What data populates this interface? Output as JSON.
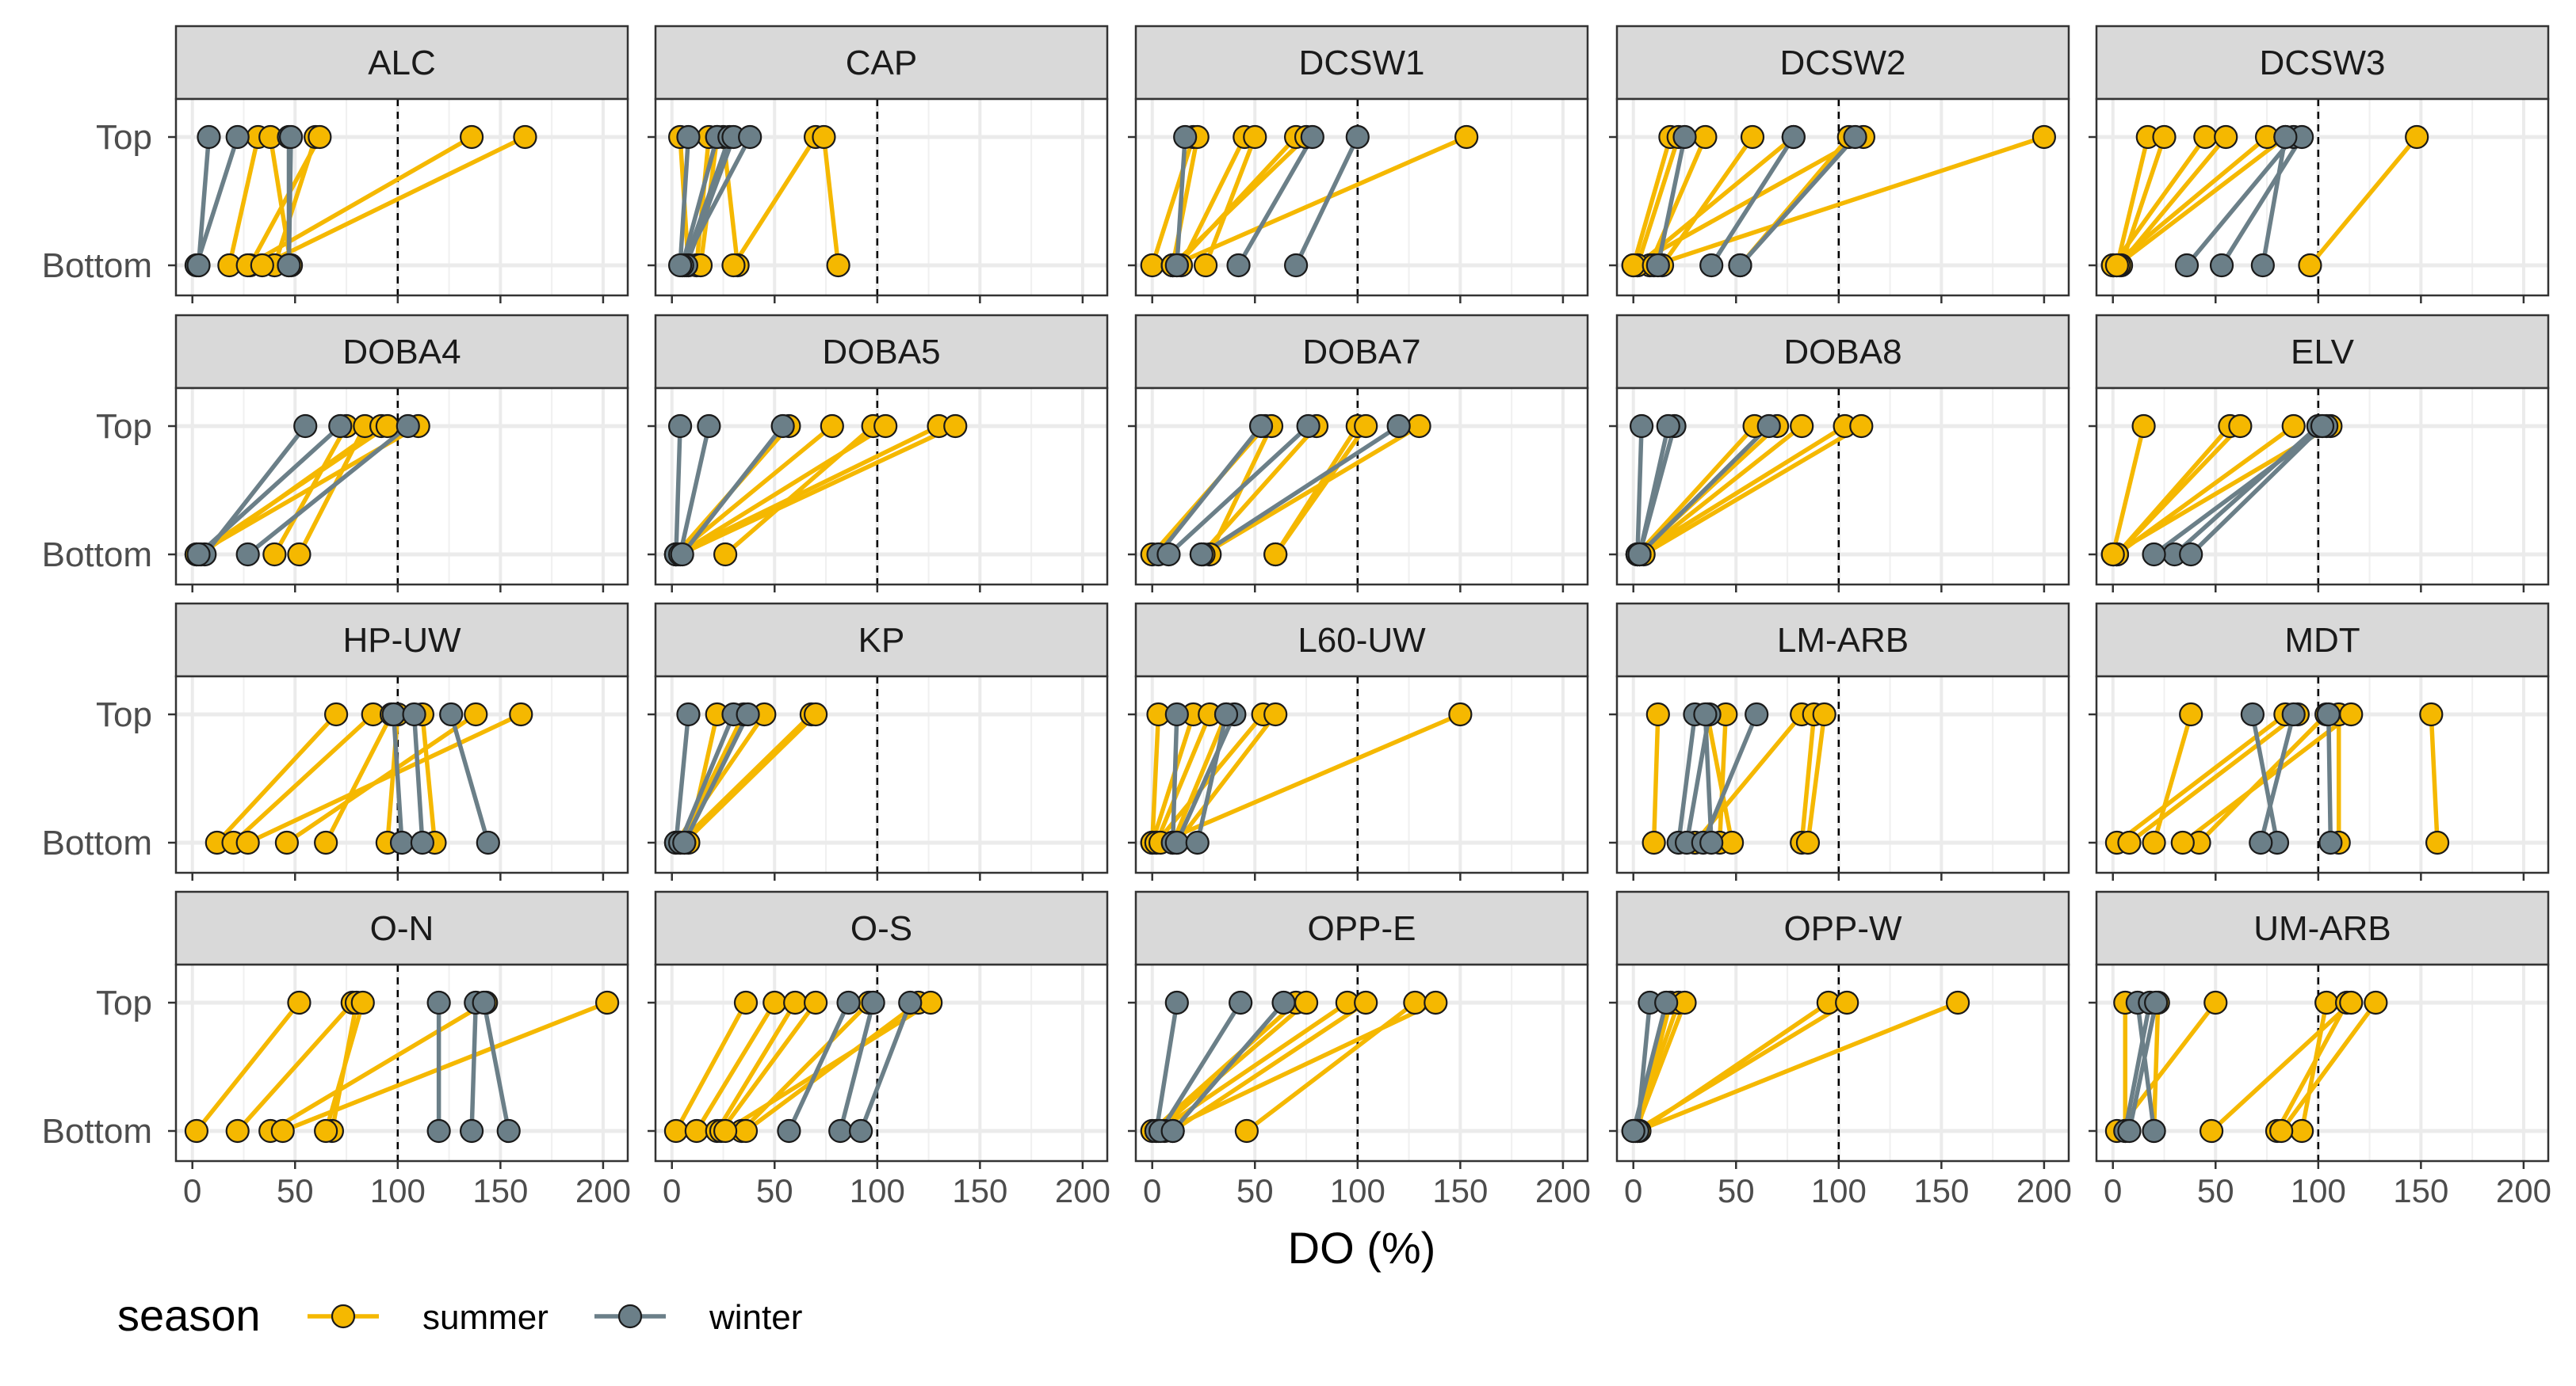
{
  "chart_data": {
    "type": "line",
    "xlabel": "DO (%)",
    "ylabel": "",
    "xlim": [
      -8,
      212
    ],
    "x_ticks": [
      0,
      50,
      100,
      150,
      200
    ],
    "y_categories": [
      "Bottom",
      "Top"
    ],
    "reference_line_x": 100,
    "grid": true,
    "legend": {
      "title": "season",
      "position": "bottom-left",
      "entries": [
        {
          "name": "summer",
          "color": "#F5B800"
        },
        {
          "name": "winter",
          "color": "#6B7F88"
        }
      ]
    },
    "colors": {
      "summer": "#F5B800",
      "winter": "#6B7F88",
      "strip_fill": "#D9D9D9"
    },
    "panels": [
      {
        "site": "ALC",
        "summer": [
          [
            60,
            40
          ],
          [
            62,
            28
          ],
          [
            32,
            18
          ],
          [
            38,
            48
          ],
          [
            136,
            27
          ],
          [
            162,
            34
          ]
        ],
        "winter": [
          [
            47,
            47
          ],
          [
            48,
            47
          ],
          [
            22,
            2
          ],
          [
            8,
            3
          ]
        ]
      },
      {
        "site": "CAP",
        "summer": [
          [
            4,
            8
          ],
          [
            18,
            12
          ],
          [
            22,
            14
          ],
          [
            25,
            32
          ],
          [
            70,
            30
          ],
          [
            74,
            81
          ]
        ],
        "winter": [
          [
            22,
            5
          ],
          [
            28,
            6
          ],
          [
            30,
            7
          ],
          [
            38,
            5
          ],
          [
            8,
            4
          ]
        ]
      },
      {
        "site": "DCSW1",
        "summer": [
          [
            20,
            0
          ],
          [
            22,
            10
          ],
          [
            45,
            14
          ],
          [
            50,
            26
          ],
          [
            70,
            12
          ],
          [
            75,
            10
          ],
          [
            153,
            10
          ]
        ],
        "winter": [
          [
            16,
            12
          ],
          [
            78,
            42
          ],
          [
            100,
            70
          ]
        ]
      },
      {
        "site": "DCSW2",
        "summer": [
          [
            18,
            0
          ],
          [
            22,
            2
          ],
          [
            35,
            8
          ],
          [
            58,
            14
          ],
          [
            78,
            2
          ],
          [
            105,
            52
          ],
          [
            112,
            0
          ],
          [
            200,
            10
          ]
        ],
        "winter": [
          [
            25,
            12
          ],
          [
            78,
            38
          ],
          [
            108,
            52
          ]
        ]
      },
      {
        "site": "DCSW3",
        "summer": [
          [
            17,
            2
          ],
          [
            25,
            4
          ],
          [
            45,
            0
          ],
          [
            55,
            3
          ],
          [
            75,
            0
          ],
          [
            84,
            2
          ],
          [
            148,
            96
          ]
        ],
        "winter": [
          [
            88,
            36
          ],
          [
            92,
            53
          ],
          [
            84,
            73
          ]
        ]
      },
      {
        "site": "DOBA4",
        "summer": [
          [
            75,
            40
          ],
          [
            84,
            52
          ],
          [
            92,
            4
          ],
          [
            95,
            2
          ],
          [
            110,
            2
          ]
        ],
        "winter": [
          [
            55,
            6
          ],
          [
            72,
            3
          ],
          [
            105,
            27
          ]
        ]
      },
      {
        "site": "DOBA5",
        "summer": [
          [
            57,
            2
          ],
          [
            78,
            2
          ],
          [
            98,
            26
          ],
          [
            104,
            3
          ],
          [
            130,
            2
          ],
          [
            138,
            4
          ]
        ],
        "winter": [
          [
            4,
            2
          ],
          [
            18,
            4
          ],
          [
            54,
            5
          ]
        ]
      },
      {
        "site": "DOBA7",
        "summer": [
          [
            55,
            0
          ],
          [
            58,
            28
          ],
          [
            80,
            24
          ],
          [
            100,
            60
          ],
          [
            104,
            60
          ],
          [
            130,
            25
          ]
        ],
        "winter": [
          [
            53,
            3
          ],
          [
            76,
            8
          ],
          [
            120,
            24
          ]
        ]
      },
      {
        "site": "DOBA8",
        "summer": [
          [
            59,
            2
          ],
          [
            70,
            2
          ],
          [
            82,
            3
          ],
          [
            103,
            2
          ],
          [
            111,
            5
          ]
        ],
        "winter": [
          [
            4,
            2
          ],
          [
            20,
            3
          ],
          [
            66,
            3
          ],
          [
            17,
            3
          ]
        ]
      },
      {
        "site": "ELV",
        "summer": [
          [
            15,
            0
          ],
          [
            57,
            2
          ],
          [
            62,
            2
          ],
          [
            88,
            2
          ],
          [
            106,
            0
          ]
        ],
        "winter": [
          [
            100,
            30
          ],
          [
            104,
            20
          ],
          [
            102,
            38
          ]
        ]
      },
      {
        "site": "HP-UW",
        "summer": [
          [
            70,
            12
          ],
          [
            88,
            20
          ],
          [
            97,
            65
          ],
          [
            112,
            118
          ],
          [
            138,
            46
          ],
          [
            160,
            27
          ],
          [
            100,
            95
          ]
        ],
        "winter": [
          [
            98,
            102
          ],
          [
            108,
            112
          ],
          [
            126,
            144
          ]
        ]
      },
      {
        "site": "KP",
        "summer": [
          [
            22,
            8
          ],
          [
            35,
            4
          ],
          [
            45,
            2
          ],
          [
            68,
            4
          ],
          [
            70,
            6
          ]
        ],
        "winter": [
          [
            8,
            2
          ],
          [
            30,
            4
          ],
          [
            37,
            6
          ]
        ]
      },
      {
        "site": "L60-UW",
        "summer": [
          [
            3,
            0
          ],
          [
            20,
            0
          ],
          [
            28,
            2
          ],
          [
            36,
            10
          ],
          [
            54,
            2
          ],
          [
            60,
            12
          ],
          [
            150,
            4
          ]
        ],
        "winter": [
          [
            12,
            10
          ],
          [
            40,
            12
          ],
          [
            36,
            22
          ]
        ]
      },
      {
        "site": "LM-ARB",
        "summer": [
          [
            12,
            10
          ],
          [
            45,
            42
          ],
          [
            82,
            30
          ],
          [
            88,
            82
          ],
          [
            93,
            85
          ],
          [
            36,
            48
          ]
        ],
        "winter": [
          [
            30,
            22
          ],
          [
            37,
            26
          ],
          [
            60,
            34
          ],
          [
            35,
            38
          ]
        ]
      },
      {
        "site": "MDT",
        "summer": [
          [
            38,
            20
          ],
          [
            84,
            2
          ],
          [
            90,
            8
          ],
          [
            104,
            42
          ],
          [
            110,
            110
          ],
          [
            116,
            34
          ],
          [
            155,
            158
          ]
        ],
        "winter": [
          [
            68,
            80
          ],
          [
            88,
            72
          ],
          [
            105,
            106
          ]
        ]
      },
      {
        "site": "O-N",
        "summer": [
          [
            52,
            2
          ],
          [
            78,
            22
          ],
          [
            80,
            68
          ],
          [
            83,
            65
          ],
          [
            143,
            38
          ],
          [
            202,
            44
          ]
        ],
        "winter": [
          [
            120,
            120
          ],
          [
            138,
            136
          ],
          [
            142,
            154
          ]
        ]
      },
      {
        "site": "O-S",
        "summer": [
          [
            36,
            2
          ],
          [
            50,
            12
          ],
          [
            60,
            22
          ],
          [
            70,
            24
          ],
          [
            96,
            34
          ],
          [
            120,
            36
          ],
          [
            126,
            26
          ]
        ],
        "winter": [
          [
            86,
            57
          ],
          [
            98,
            82
          ],
          [
            116,
            92
          ]
        ]
      },
      {
        "site": "OPP-E",
        "summer": [
          [
            70,
            0
          ],
          [
            75,
            2
          ],
          [
            95,
            3
          ],
          [
            104,
            10
          ],
          [
            128,
            46
          ],
          [
            138,
            6
          ]
        ],
        "winter": [
          [
            12,
            2
          ],
          [
            43,
            4
          ],
          [
            64,
            10
          ]
        ]
      },
      {
        "site": "OPP-W",
        "summer": [
          [
            18,
            2
          ],
          [
            22,
            0
          ],
          [
            25,
            1
          ],
          [
            95,
            3
          ],
          [
            104,
            1
          ],
          [
            158,
            2
          ]
        ],
        "winter": [
          [
            8,
            2
          ],
          [
            16,
            0
          ]
        ]
      },
      {
        "site": "UM-ARB",
        "summer": [
          [
            6,
            6
          ],
          [
            22,
            20
          ],
          [
            50,
            2
          ],
          [
            104,
            92
          ],
          [
            114,
            80
          ],
          [
            116,
            48
          ],
          [
            128,
            82
          ]
        ],
        "winter": [
          [
            12,
            20
          ],
          [
            18,
            6
          ],
          [
            21,
            8
          ]
        ]
      }
    ]
  }
}
